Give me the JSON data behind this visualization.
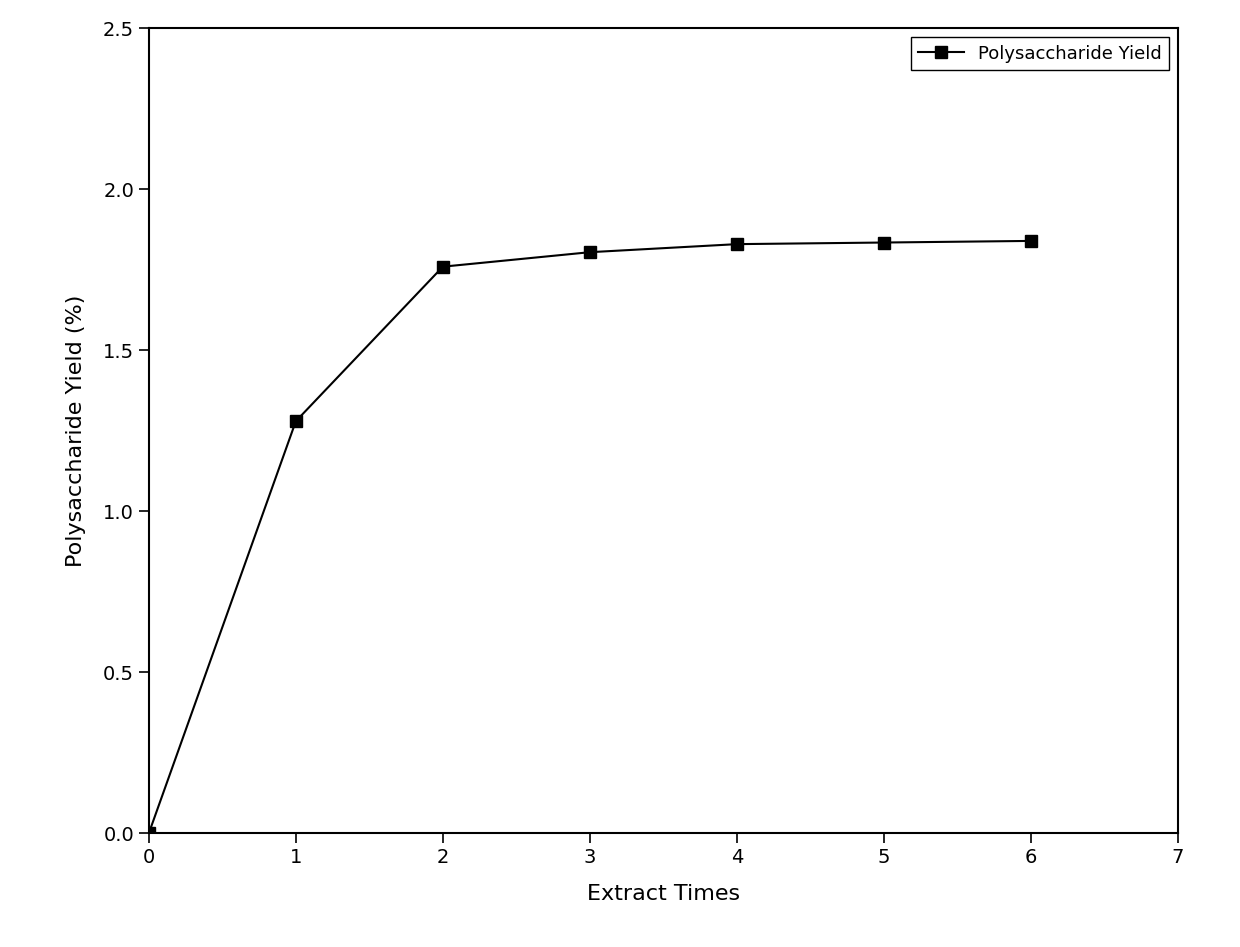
{
  "x": [
    0,
    1,
    2,
    3,
    4,
    5,
    6
  ],
  "y": [
    0.0,
    1.28,
    1.76,
    1.805,
    1.83,
    1.835,
    1.84
  ],
  "xlabel": "Extract Times",
  "ylabel": "Polysaccharide Yield (%)",
  "legend_label": "Polysaccharide Yield",
  "xlim": [
    0,
    7
  ],
  "ylim": [
    0.0,
    2.5
  ],
  "xticks": [
    0,
    1,
    2,
    3,
    4,
    5,
    6,
    7
  ],
  "yticks": [
    0.0,
    0.5,
    1.0,
    1.5,
    2.0,
    2.5
  ],
  "line_color": "#000000",
  "marker": "s",
  "marker_size": 8,
  "line_width": 1.5,
  "background_color": "#ffffff",
  "legend_fontsize": 13,
  "axis_label_fontsize": 16,
  "tick_fontsize": 14
}
